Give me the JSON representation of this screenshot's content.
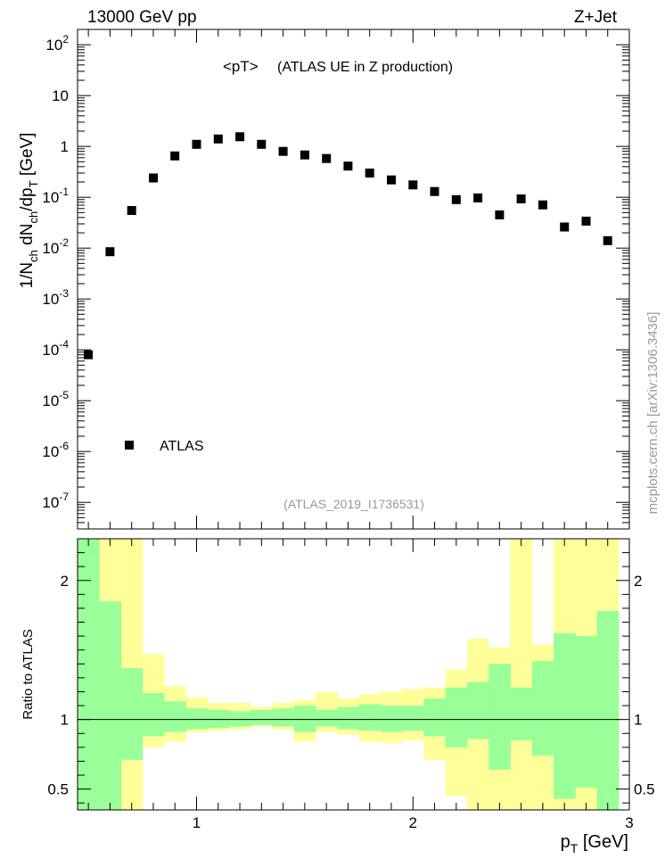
{
  "header": {
    "left": "13000 GeV pp",
    "right": "Z+Jet"
  },
  "side_label": "mcplots.cern.ch [arXiv:1306.3436]",
  "chart_data": [
    {
      "type": "scatter",
      "title": "<pT>",
      "subtitle": "(ATLAS UE in Z production)",
      "analysis_tag": "(ATLAS_2019_I1736531)",
      "ylabel": "1/N_ch dN_ch/dp_T [GeV]",
      "yscale": "log",
      "ylim": [
        3e-08,
        200
      ],
      "xlim": [
        0.45,
        3.0
      ],
      "y_ticks": [
        {
          "value": 100,
          "label": "10",
          "sup": "2"
        },
        {
          "value": 10,
          "label": "10",
          "sup": ""
        },
        {
          "value": 1,
          "label": "1",
          "sup": ""
        },
        {
          "value": 0.1,
          "label": "10",
          "sup": "-1"
        },
        {
          "value": 0.01,
          "label": "10",
          "sup": "-2"
        },
        {
          "value": 0.001,
          "label": "10",
          "sup": "-3"
        },
        {
          "value": 0.0001,
          "label": "10",
          "sup": "-4"
        },
        {
          "value": 1e-05,
          "label": "10",
          "sup": "-5"
        },
        {
          "value": 1e-06,
          "label": "10",
          "sup": "-6"
        },
        {
          "value": 1e-07,
          "label": "10",
          "sup": "-7"
        }
      ],
      "legend": [
        {
          "name": "ATLAS",
          "marker": "square",
          "color": "#000000"
        }
      ],
      "series": [
        {
          "name": "ATLAS",
          "x": [
            0.5,
            0.6,
            0.7,
            0.8,
            0.9,
            1.0,
            1.1,
            1.2,
            1.3,
            1.4,
            1.5,
            1.6,
            1.7,
            1.8,
            1.9,
            2.0,
            2.1,
            2.2,
            2.3,
            2.4,
            2.5,
            2.6,
            2.7,
            2.8,
            2.9
          ],
          "y": [
            8e-05,
            0.0085,
            0.055,
            0.24,
            0.65,
            1.1,
            1.4,
            1.55,
            1.1,
            0.8,
            0.68,
            0.58,
            0.41,
            0.3,
            0.22,
            0.175,
            0.13,
            0.09,
            0.097,
            0.045,
            0.093,
            0.071,
            0.026,
            0.034,
            0.014
          ]
        }
      ]
    },
    {
      "type": "area",
      "ylabel": "Ratio to ATLAS",
      "xlabel": "p_T [GeV]",
      "xlim": [
        0.45,
        3.0
      ],
      "ylim": [
        0.35,
        2.3
      ],
      "x_ticks": [
        1,
        2,
        3
      ],
      "y_ticks": [
        0.5,
        1,
        2
      ],
      "reference_line": 1,
      "bin_edges": [
        0.45,
        0.55,
        0.65,
        0.75,
        0.85,
        0.95,
        1.05,
        1.15,
        1.25,
        1.35,
        1.45,
        1.55,
        1.65,
        1.75,
        1.85,
        1.95,
        2.05,
        2.15,
        2.25,
        2.35,
        2.45,
        2.55,
        2.65,
        2.75,
        2.85,
        2.95
      ],
      "bands": [
        {
          "name": "stat+syst uncertainty",
          "color": "#ffff99",
          "low": [
            0.35,
            0.35,
            0.35,
            0.8,
            0.84,
            0.91,
            0.92,
            0.93,
            0.95,
            0.93,
            0.84,
            0.91,
            0.89,
            0.84,
            0.83,
            0.85,
            0.71,
            0.45,
            0.35,
            0.35,
            0.35,
            0.35,
            0.35,
            0.35,
            0.35
          ],
          "high": [
            2.3,
            2.3,
            2.3,
            1.47,
            1.24,
            1.16,
            1.12,
            1.12,
            1.09,
            1.12,
            1.14,
            1.2,
            1.15,
            1.18,
            1.2,
            1.22,
            1.23,
            1.36,
            1.58,
            1.52,
            2.45,
            1.54,
            2.3,
            2.3,
            2.3
          ]
        },
        {
          "name": "stat uncertainty",
          "color": "#99ff99",
          "low": [
            0.35,
            0.35,
            0.71,
            0.88,
            0.91,
            0.93,
            0.94,
            0.95,
            0.96,
            0.95,
            0.91,
            0.95,
            0.93,
            0.92,
            0.91,
            0.92,
            0.88,
            0.8,
            0.86,
            0.64,
            0.85,
            0.74,
            0.43,
            0.51,
            0.35
          ],
          "high": [
            2.3,
            1.85,
            1.37,
            1.19,
            1.13,
            1.08,
            1.07,
            1.06,
            1.07,
            1.08,
            1.1,
            1.07,
            1.09,
            1.11,
            1.1,
            1.1,
            1.15,
            1.23,
            1.27,
            1.4,
            1.23,
            1.42,
            1.62,
            1.6,
            1.78
          ]
        }
      ]
    }
  ]
}
